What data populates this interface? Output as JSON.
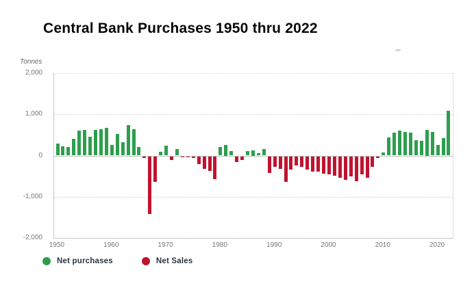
{
  "title": "Central Bank Purchases 1950 thru 2022",
  "axis_unit_label": "Tonnes",
  "legend": {
    "purchases_label": "Net purchases",
    "sales_label": "Net Sales"
  },
  "colors": {
    "purchases_green": "#2e9e4e",
    "sales_red": "#c01330",
    "axis_text": "#757575",
    "gridline": "#cfcfcf",
    "title_text": "#060606"
  },
  "chart_data": {
    "type": "bar",
    "title": "Central Bank Purchases 1950 thru 2022",
    "xlabel": "",
    "ylabel": "Tonnes",
    "ylim": [
      -2000,
      2000
    ],
    "y_ticks": [
      2000,
      1000,
      0,
      -1000,
      -2000
    ],
    "y_tick_labels": [
      "2,000",
      "1,000",
      "0",
      "-1,000",
      "-2,000"
    ],
    "x_tick_years": [
      1950,
      1960,
      1970,
      1980,
      1990,
      2000,
      2010,
      2020
    ],
    "grid": "horizontal dotted",
    "legend_position": "bottom-left",
    "series_note": "single series; positive values green (Net purchases), negative values red (Net Sales)",
    "years": [
      1950,
      1951,
      1952,
      1953,
      1954,
      1955,
      1956,
      1957,
      1958,
      1959,
      1960,
      1961,
      1962,
      1963,
      1964,
      1965,
      1966,
      1967,
      1968,
      1969,
      1970,
      1971,
      1972,
      1973,
      1974,
      1975,
      1976,
      1977,
      1978,
      1979,
      1980,
      1981,
      1982,
      1983,
      1984,
      1985,
      1986,
      1987,
      1988,
      1989,
      1990,
      1991,
      1992,
      1993,
      1994,
      1995,
      1996,
      1997,
      1998,
      1999,
      2000,
      2001,
      2002,
      2003,
      2004,
      2005,
      2006,
      2007,
      2008,
      2009,
      2010,
      2011,
      2012,
      2013,
      2014,
      2015,
      2016,
      2017,
      2018,
      2019,
      2020,
      2021,
      2022
    ],
    "values": [
      290,
      225,
      205,
      400,
      600,
      615,
      450,
      615,
      635,
      670,
      265,
      530,
      330,
      745,
      635,
      205,
      -45,
      -1400,
      -620,
      90,
      235,
      -95,
      150,
      -10,
      -20,
      -40,
      -190,
      -300,
      -365,
      -555,
      210,
      250,
      100,
      -140,
      -95,
      100,
      125,
      50,
      155,
      -410,
      -250,
      -310,
      -620,
      -320,
      -230,
      -255,
      -320,
      -375,
      -370,
      -430,
      -440,
      -475,
      -515,
      -580,
      -495,
      -605,
      -435,
      -530,
      -265,
      -40,
      80,
      445,
      550,
      605,
      580,
      555,
      380,
      355,
      625,
      575,
      255,
      430,
      1080
    ]
  }
}
